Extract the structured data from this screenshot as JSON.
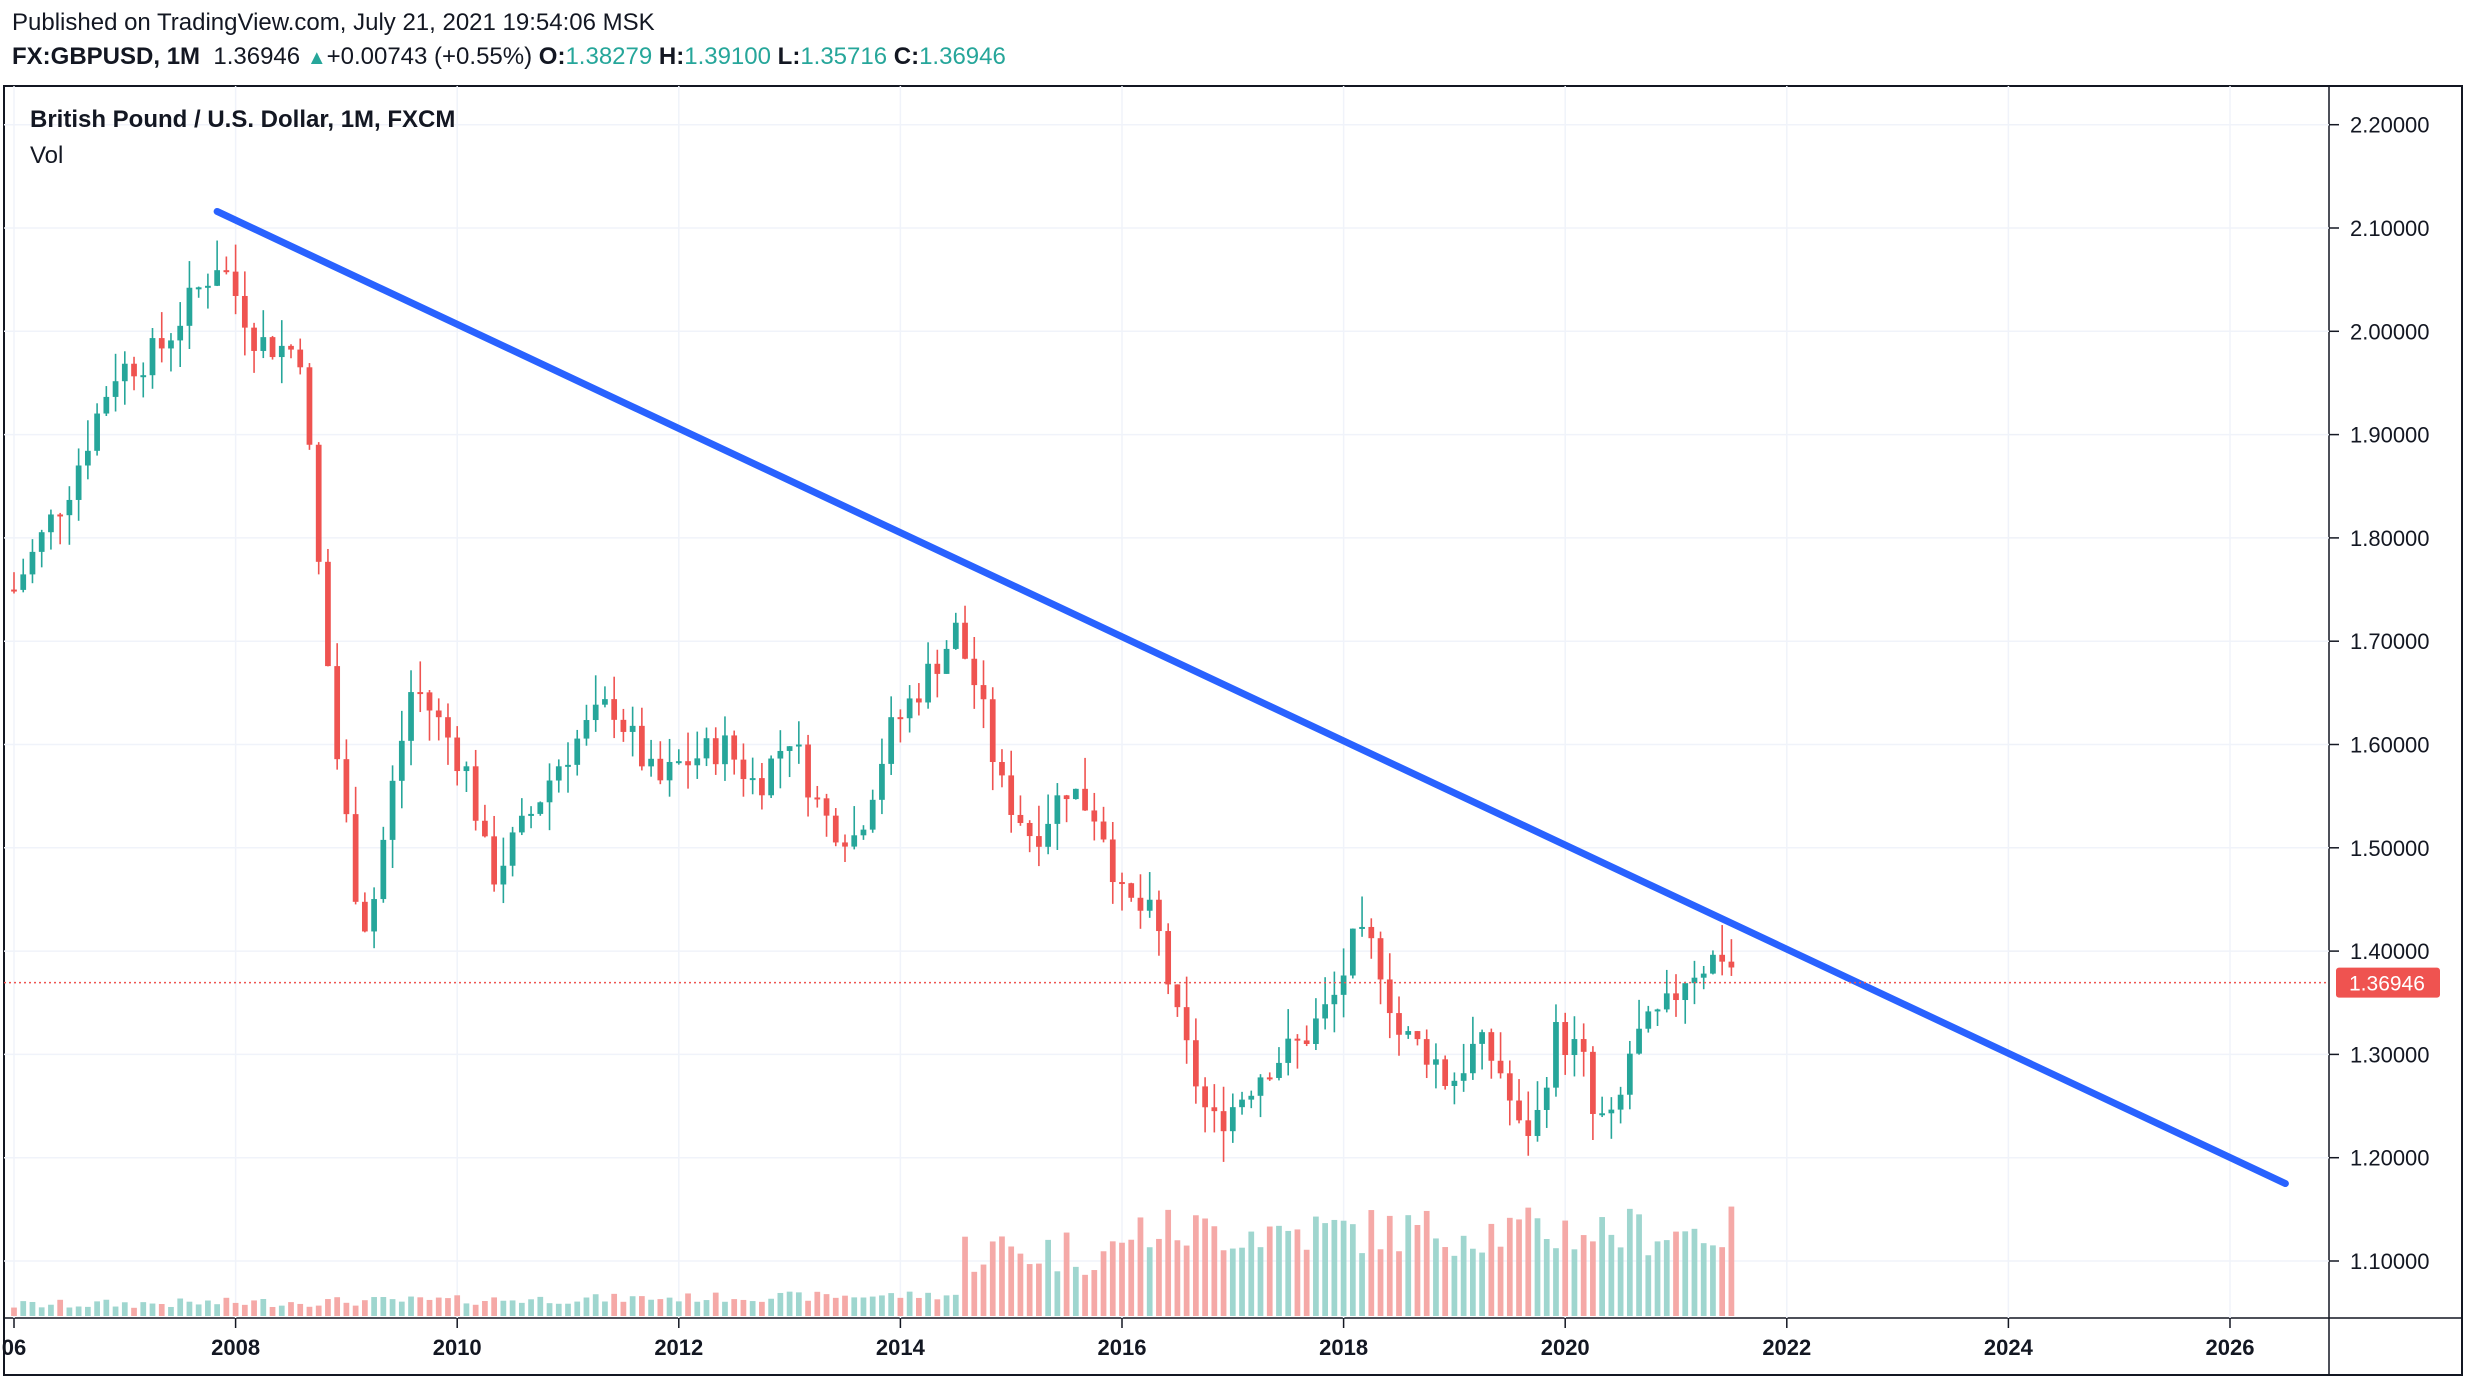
{
  "header": {
    "publish_line": "Published on TradingView.com, July 21, 2021 19:54:06 MSK",
    "symbol": "FX:GBPUSD",
    "interval": "1M",
    "last": "1.36946",
    "change_arrow": "▲",
    "change": "+0.00743 (+0.55%)",
    "open_label": "O:",
    "open": "1.38279",
    "high_label": "H:",
    "high": "1.39100",
    "low_label": "L:",
    "low": "1.35716",
    "close_label": "C:",
    "close": "1.36946"
  },
  "legend": {
    "title": "British Pound / U.S. Dollar, 1M, FXCM",
    "volume_label": "Vol"
  },
  "price_tag": "1.36946",
  "colors": {
    "up": "#26a69a",
    "down": "#ef5350",
    "trendline": "#2962ff",
    "price_line": "#ef5350",
    "grid": "#f0f3fa"
  },
  "chart_data": {
    "type": "candlestick",
    "title": "British Pound / U.S. Dollar, 1M, FXCM",
    "y_ticks": [
      "1.10000",
      "1.20000",
      "1.30000",
      "1.40000",
      "1.50000",
      "1.60000",
      "1.70000",
      "1.80000",
      "1.90000",
      "2.00000",
      "2.10000",
      "2.20000"
    ],
    "x_ticks": [
      "2008",
      "2010",
      "2012",
      "2014",
      "2016",
      "2018",
      "2020",
      "2022",
      "2024",
      "2026"
    ],
    "x_first_partial_tick": "06",
    "y_range": [
      1.045,
      2.245
    ],
    "x_range": [
      2006.0,
      2027.0
    ],
    "last_price": 1.36946,
    "trendline": {
      "from": {
        "date": "2007-11",
        "price": 2.116
      },
      "to": {
        "date": "2026-07",
        "price": 1.175
      }
    },
    "anchors": [
      [
        2006.0,
        1.75
      ],
      [
        2006.5,
        1.85
      ],
      [
        2006.9,
        1.96
      ],
      [
        2007.3,
        1.98
      ],
      [
        2007.6,
        2.03
      ],
      [
        2007.85,
        2.07
      ],
      [
        2008.2,
        1.99
      ],
      [
        2008.6,
        1.98
      ],
      [
        2008.7,
        1.83
      ],
      [
        2008.9,
        1.6
      ],
      [
        2009.1,
        1.45
      ],
      [
        2009.2,
        1.42
      ],
      [
        2009.4,
        1.55
      ],
      [
        2009.6,
        1.66
      ],
      [
        2009.9,
        1.61
      ],
      [
        2010.1,
        1.57
      ],
      [
        2010.3,
        1.47
      ],
      [
        2010.6,
        1.52
      ],
      [
        2010.9,
        1.58
      ],
      [
        2011.2,
        1.62
      ],
      [
        2011.4,
        1.64
      ],
      [
        2011.8,
        1.56
      ],
      [
        2012.0,
        1.58
      ],
      [
        2012.4,
        1.6
      ],
      [
        2012.7,
        1.56
      ],
      [
        2013.0,
        1.61
      ],
      [
        2013.3,
        1.53
      ],
      [
        2013.6,
        1.51
      ],
      [
        2013.9,
        1.61
      ],
      [
        2014.2,
        1.66
      ],
      [
        2014.5,
        1.71
      ],
      [
        2014.7,
        1.65
      ],
      [
        2014.9,
        1.56
      ],
      [
        2015.2,
        1.51
      ],
      [
        2015.5,
        1.56
      ],
      [
        2015.8,
        1.53
      ],
      [
        2016.0,
        1.45
      ],
      [
        2016.3,
        1.43
      ],
      [
        2016.5,
        1.33
      ],
      [
        2016.8,
        1.23
      ],
      [
        2017.0,
        1.25
      ],
      [
        2017.3,
        1.29
      ],
      [
        2017.6,
        1.31
      ],
      [
        2017.9,
        1.35
      ],
      [
        2018.1,
        1.41
      ],
      [
        2018.3,
        1.4
      ],
      [
        2018.5,
        1.32
      ],
      [
        2018.8,
        1.3
      ],
      [
        2018.95,
        1.27
      ],
      [
        2019.2,
        1.31
      ],
      [
        2019.4,
        1.29
      ],
      [
        2019.6,
        1.22
      ],
      [
        2019.75,
        1.24
      ],
      [
        2019.9,
        1.32
      ],
      [
        2020.15,
        1.3
      ],
      [
        2020.25,
        1.24
      ],
      [
        2020.45,
        1.23
      ],
      [
        2020.6,
        1.31
      ],
      [
        2020.9,
        1.34
      ],
      [
        2021.1,
        1.38
      ],
      [
        2021.3,
        1.39
      ],
      [
        2021.45,
        1.4
      ],
      [
        2021.55,
        1.37
      ]
    ],
    "volume": {
      "start": 2006.0,
      "end": 2021.55,
      "note": "monthly volume histogram, low before 2014.5, high after"
    }
  }
}
